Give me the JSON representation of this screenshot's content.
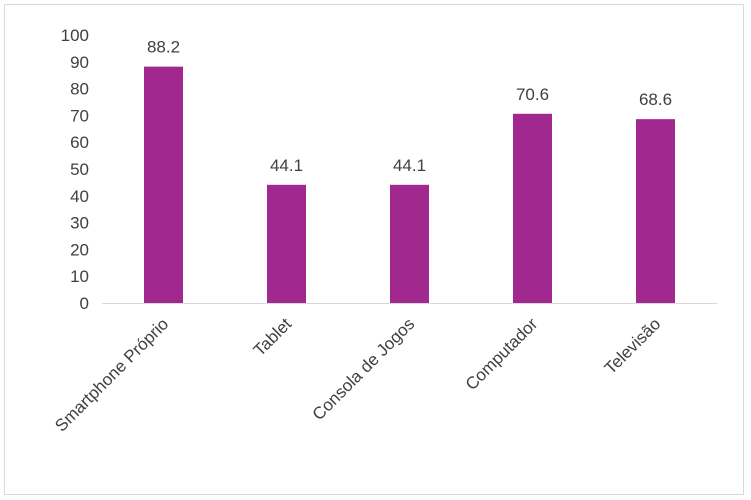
{
  "chart_data": {
    "type": "bar",
    "categories": [
      "Smartphone Próprio",
      "Tablet",
      "Consola de Jogos",
      "Computador",
      "Televisão"
    ],
    "values": [
      88.2,
      44.1,
      44.1,
      70.6,
      68.6
    ],
    "data_labels": [
      "88.2",
      "44.1",
      "44.1",
      "70.6",
      "68.6"
    ],
    "y_ticks": [
      "0",
      "10",
      "20",
      "30",
      "40",
      "50",
      "60",
      "70",
      "80",
      "90",
      "100"
    ],
    "ylim": [
      0,
      100
    ],
    "title": "",
    "xlabel": "",
    "ylabel": "",
    "grid": false,
    "legend": "none",
    "colors": {
      "bar": "#A0288F",
      "axis": "#d9d9d9",
      "text": "#404040"
    }
  }
}
